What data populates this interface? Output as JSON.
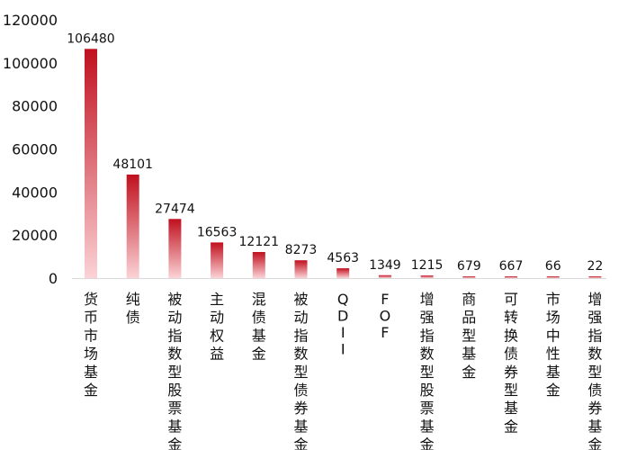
{
  "chart_data": {
    "type": "bar",
    "title": "",
    "xlabel": "",
    "ylabel": "",
    "categories": [
      "货币市场基金",
      "纯债",
      "被动指数型股票基金",
      "主动权益",
      "混债基金",
      "被动指数型债券基金",
      "QDII",
      "FOF",
      "增强指数型股票基金",
      "商品型基金",
      "可转换债券型基金",
      "市场中性基金",
      "增强指数型债券基金"
    ],
    "values": [
      106480,
      48101,
      27474,
      16563,
      12121,
      8273,
      4563,
      1349,
      1215,
      679,
      667,
      66,
      22
    ],
    "value_labels": [
      "106480",
      "48101",
      "27474",
      "16563",
      "12121",
      "8273",
      "4563",
      "1349",
      "1215",
      "679",
      "667",
      "66",
      "22"
    ],
    "ylim": [
      0,
      120000
    ],
    "yticks": [
      "0",
      "20000",
      "40000",
      "60000",
      "80000",
      "100000",
      "120000"
    ],
    "grid": false,
    "legend": "none",
    "colors": {
      "bar_top": "#c0101e",
      "bar_bottom": "#fbd3d6",
      "baseline": "#d9d9d9",
      "text": "#111111"
    }
  }
}
